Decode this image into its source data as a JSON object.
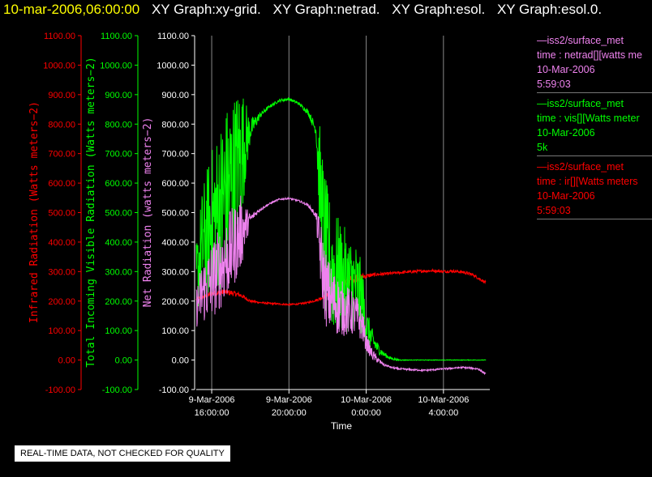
{
  "header": {
    "datetime": "10-mar-2006,06:00:00",
    "graphs": [
      "XY Graph:xy-grid.",
      "XY Graph:netrad.",
      "XY Graph:esol.",
      "XY Graph:esol.0."
    ]
  },
  "legend": [
    {
      "lines": [
        "—iss2/surface_met",
        "time : netrad[][watts me",
        "10-Mar-2006",
        "5:59:03"
      ],
      "color": "#ee82ee"
    },
    {
      "lines": [
        "—iss2/surface_met",
        "time : vis[][Watts meter",
        "10-Mar-2006",
        "5k"
      ],
      "color": "#00ff00"
    },
    {
      "lines": [
        "—iss2/surface_met",
        "time : ir[][Watts meters",
        "10-Mar-2006",
        "5:59:03"
      ],
      "color": "#ff0000"
    }
  ],
  "notice": "REAL-TIME DATA, NOT CHECKED FOR QUALITY",
  "chart_data": {
    "type": "line",
    "xlabel": "Time",
    "x_ticks": [
      {
        "t": 16,
        "line1": "9-Mar-2006",
        "line2": "16:00:00"
      },
      {
        "t": 20,
        "line1": "9-Mar-2006",
        "line2": "20:00:00"
      },
      {
        "t": 24,
        "line1": "10-Mar-2006",
        "line2": "0:00:00"
      },
      {
        "t": 28,
        "line1": "10-Mar-2006",
        "line2": "4:00:00"
      }
    ],
    "x_unit": "hours since 9-Mar-2006 00:00",
    "xlim": [
      15.2,
      30.4
    ],
    "ylim": [
      -100,
      1100
    ],
    "y_ticks": [
      "-100.00",
      "0.00",
      "100.00",
      "200.00",
      "300.00",
      "400.00",
      "500.00",
      "600.00",
      "700.00",
      "800.00",
      "900.00",
      "1000.00",
      "1100.00"
    ],
    "y_axes": [
      {
        "label": "Infrared Radiation (Watts meters−2)",
        "color": "#ff0000"
      },
      {
        "label": "Total Incoming Visible Radiation (Watts meters−2)",
        "color": "#00ff00"
      },
      {
        "label": "Net Radiation (watts meters−2)",
        "color": "#ee82ee"
      }
    ],
    "grid": "vertical",
    "series": [
      {
        "name": "vis",
        "color": "#00ff00",
        "x": [
          15.2,
          15.5,
          15.9,
          16.3,
          16.7,
          17.1,
          17.5,
          18.0,
          18.5,
          19.0,
          19.5,
          20.0,
          20.5,
          21.0,
          21.4,
          21.6,
          21.8,
          22.0,
          22.3,
          22.6,
          22.9,
          23.2,
          23.5,
          23.8,
          24.0,
          24.3,
          24.6,
          24.9,
          25.3,
          25.7,
          26.2,
          27.0,
          28.0,
          29.0,
          30.0,
          30.2
        ],
        "y": [
          280,
          380,
          450,
          500,
          560,
          620,
          700,
          780,
          830,
          860,
          880,
          885,
          870,
          840,
          780,
          600,
          420,
          330,
          300,
          280,
          270,
          260,
          250,
          200,
          120,
          70,
          40,
          20,
          5,
          0,
          0,
          0,
          0,
          0,
          0,
          0
        ],
        "noise": [
          120,
          200,
          250,
          280,
          300,
          280,
          250,
          40,
          10,
          5,
          5,
          5,
          5,
          10,
          20,
          200,
          250,
          250,
          220,
          200,
          180,
          160,
          150,
          120,
          60,
          40,
          20,
          10,
          5,
          2,
          1,
          1,
          1,
          1,
          1,
          1
        ]
      },
      {
        "name": "netrad",
        "color": "#ee82ee",
        "x": [
          15.2,
          15.5,
          15.9,
          16.3,
          16.7,
          17.1,
          17.5,
          18.0,
          18.5,
          19.0,
          19.5,
          20.0,
          20.5,
          21.0,
          21.4,
          21.6,
          21.8,
          22.0,
          22.3,
          22.6,
          22.9,
          23.2,
          23.5,
          23.8,
          24.0,
          24.3,
          24.6,
          24.9,
          25.3,
          25.7,
          26.2,
          27.0,
          28.0,
          29.0,
          29.8,
          30.2
        ],
        "y": [
          180,
          230,
          260,
          300,
          340,
          380,
          430,
          480,
          510,
          530,
          545,
          548,
          540,
          525,
          490,
          380,
          280,
          220,
          200,
          180,
          170,
          160,
          150,
          120,
          60,
          20,
          0,
          -15,
          -25,
          -30,
          -32,
          -35,
          -30,
          -25,
          -30,
          -48
        ],
        "noise": [
          70,
          110,
          130,
          140,
          150,
          140,
          130,
          15,
          5,
          3,
          3,
          3,
          3,
          5,
          10,
          110,
          130,
          130,
          110,
          100,
          90,
          80,
          70,
          60,
          30,
          20,
          10,
          5,
          3,
          3,
          3,
          3,
          3,
          3,
          3,
          3
        ]
      },
      {
        "name": "ir",
        "color": "#ff0000",
        "x": [
          15.2,
          15.6,
          16.0,
          16.5,
          17.0,
          17.5,
          18.0,
          18.5,
          19.0,
          19.5,
          20.0,
          20.5,
          21.0,
          21.5,
          22.0,
          22.5,
          23.0,
          23.5,
          24.0,
          24.5,
          25.0,
          25.5,
          26.0,
          26.5,
          27.0,
          27.5,
          28.0,
          28.5,
          29.0,
          29.5,
          30.0,
          30.2
        ],
        "y": [
          205,
          215,
          225,
          230,
          228,
          220,
          200,
          195,
          192,
          190,
          188,
          190,
          195,
          205,
          220,
          240,
          265,
          280,
          285,
          290,
          292,
          295,
          298,
          300,
          302,
          303,
          300,
          302,
          298,
          290,
          270,
          262
        ],
        "noise": [
          8,
          8,
          10,
          10,
          10,
          8,
          5,
          3,
          3,
          3,
          3,
          3,
          3,
          5,
          8,
          15,
          20,
          15,
          8,
          6,
          5,
          5,
          5,
          5,
          5,
          5,
          5,
          5,
          5,
          5,
          5,
          5
        ]
      }
    ]
  }
}
